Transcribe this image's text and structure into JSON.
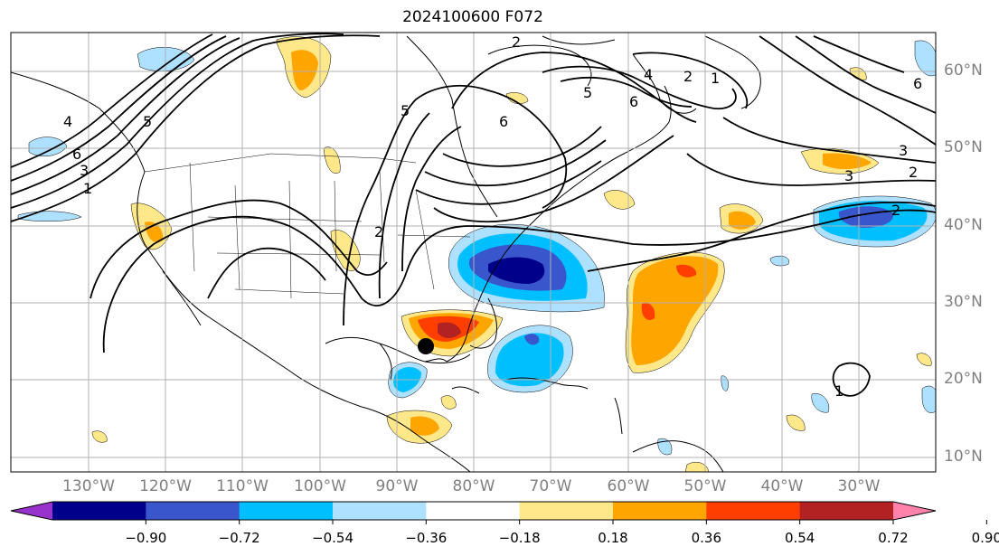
{
  "title": "2024100600 F072",
  "lat_labels": [
    "60°N",
    "50°N",
    "40°N",
    "30°N",
    "20°N",
    "10°N"
  ],
  "lon_labels": [
    "130°W",
    "120°W",
    "110°W",
    "100°W",
    "90°W",
    "80°W",
    "70°W",
    "60°W",
    "50°W",
    "40°W",
    "30°W"
  ],
  "contour_labels": [
    "1",
    "2",
    "3",
    "4",
    "5",
    "6",
    "5",
    "6",
    "4",
    "2",
    "1",
    "6",
    "5",
    "3",
    "2",
    "3",
    "2",
    "1",
    "2",
    "6"
  ],
  "colorbar": {
    "ticks": [
      "−0.90",
      "−0.72",
      "−0.54",
      "−0.36",
      "−0.18",
      "0.18",
      "0.36",
      "0.54",
      "0.72",
      "0.90"
    ],
    "colors": [
      "#9932cc",
      "#00008b",
      "#3a56cc",
      "#00bfff",
      "#aee0ff",
      "#ffffff",
      "#ffe88a",
      "#ffa500",
      "#ff3e00",
      "#b22222",
      "#ff82ab"
    ]
  },
  "colors": {
    "gridline": "#b0b0b0",
    "axis_text": "#808080",
    "contour": "#000000"
  },
  "marker": {
    "name": "storm-center",
    "lon": "86°W",
    "lat": "24°N"
  }
}
